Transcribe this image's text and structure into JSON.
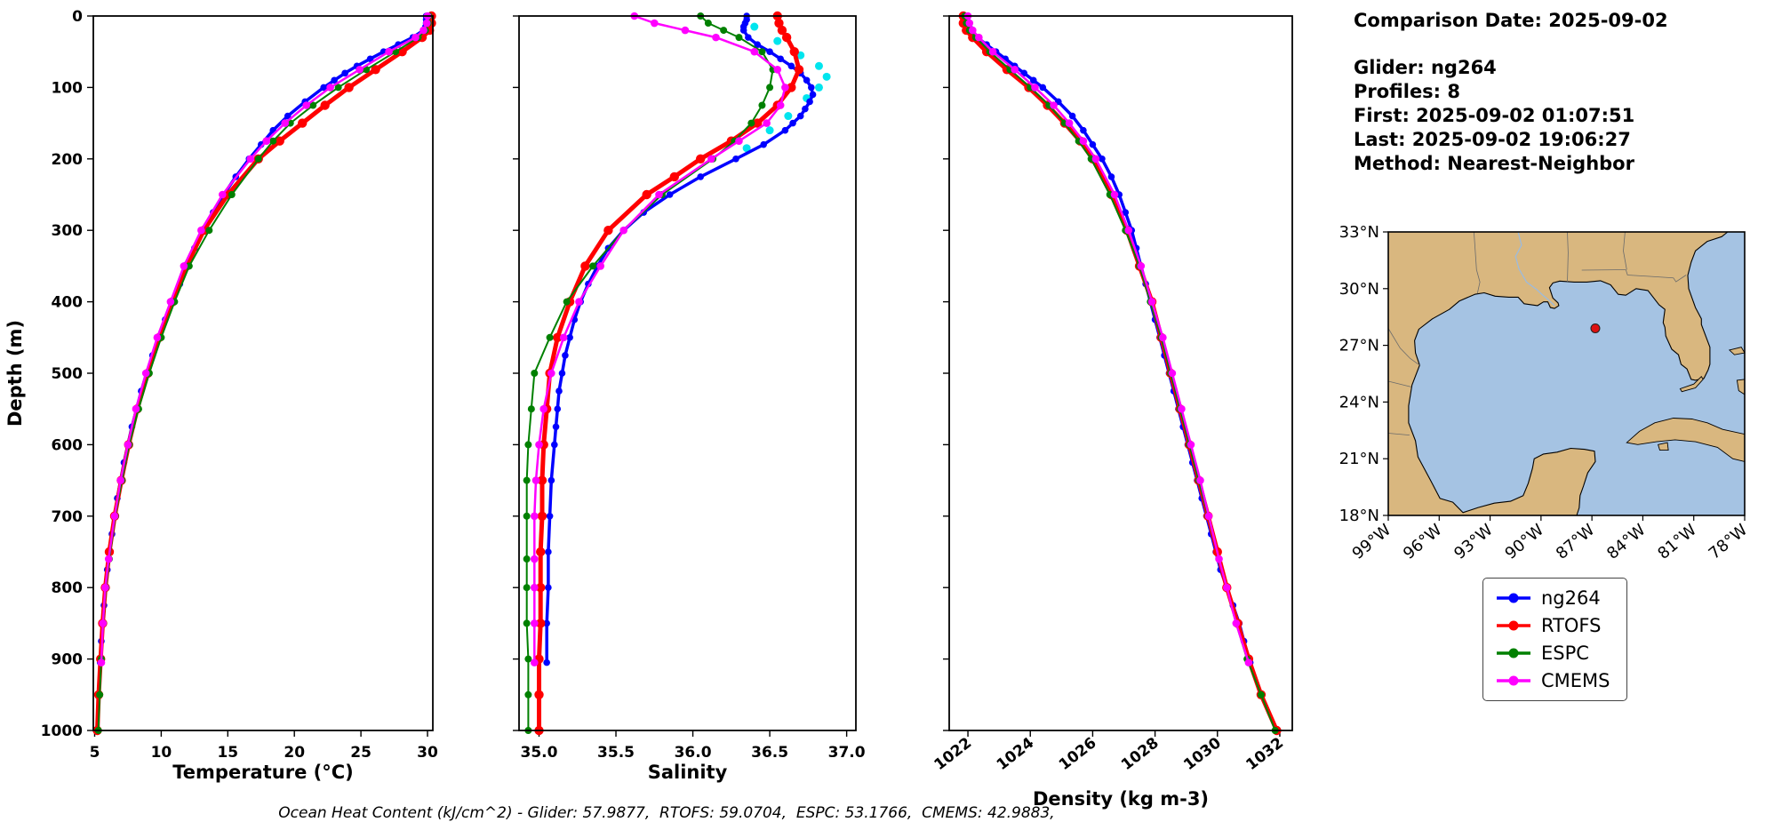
{
  "info": {
    "date": "Comparison Date: 2025-09-02",
    "lines": [
      "Glider: ng264",
      "Profiles: 8",
      "First: 2025-09-02 01:07:51",
      "Last: 2025-09-02 19:06:27",
      "Method: Nearest-Neighbor"
    ]
  },
  "caption": "Ocean Heat Content (kJ/cm^2) - Glider: 57.9877,  RTOFS: 59.0704,  ESPC: 53.1766,  CMEMS: 42.9883,",
  "legend": {
    "entries": [
      {
        "label": "ng264",
        "color": "#0000ff"
      },
      {
        "label": "RTOFS",
        "color": "#ff0000"
      },
      {
        "label": "ESPC",
        "color": "#008000"
      },
      {
        "label": "CMEMS",
        "color": "#ff00ff"
      }
    ]
  },
  "map": {
    "extent": {
      "lon_min": -99,
      "lon_max": -78,
      "lat_min": 18,
      "lat_max": 33
    },
    "lat_values": [
      33,
      30,
      27,
      24,
      21,
      18
    ],
    "lat_ticks": [
      "33°N",
      "30°N",
      "27°N",
      "24°N",
      "21°N",
      "18°N"
    ],
    "lon_values": [
      -99,
      -96,
      -93,
      -90,
      -87,
      -84,
      -81,
      -78
    ],
    "lon_ticks": [
      "99°W",
      "96°W",
      "93°W",
      "90°W",
      "87°W",
      "84°W",
      "81°W",
      "78°W"
    ],
    "land_color": "#d9b77f",
    "water_color": "#a5c3e3",
    "marker": {
      "lon": -86.8,
      "lat": 27.9,
      "color": "#dd1111"
    }
  },
  "chart_data": [
    {
      "id": "temperature",
      "type": "line",
      "xlabel": "Temperature (°C)",
      "ylabel": "Depth (m)",
      "xlim": [
        4.9,
        30.4
      ],
      "ylim": [
        0,
        1000
      ],
      "xticks": [
        5,
        10,
        15,
        20,
        25,
        30
      ],
      "xtick_labels": [
        "5",
        "10",
        "15",
        "20",
        "25",
        "30"
      ],
      "yticks": [
        0,
        100,
        200,
        300,
        400,
        500,
        600,
        700,
        800,
        900,
        1000
      ],
      "ytick_labels": [
        "0",
        "100",
        "200",
        "300",
        "400",
        "500",
        "600",
        "700",
        "800",
        "900",
        "1000"
      ],
      "series": [
        {
          "name": "ng264",
          "color": "#0000ff",
          "depths": [
            0,
            5,
            10,
            15,
            20,
            30,
            40,
            50,
            60,
            70,
            80,
            90,
            100,
            120,
            140,
            160,
            180,
            200,
            225,
            250,
            275,
            300,
            325,
            350,
            375,
            400,
            425,
            450,
            475,
            500,
            525,
            550,
            575,
            600,
            625,
            650,
            675,
            700,
            725,
            750,
            775,
            800,
            825,
            850,
            875,
            905
          ],
          "values": [
            29.9,
            29.9,
            29.9,
            29.85,
            29.7,
            28.9,
            27.8,
            26.7,
            25.7,
            24.7,
            23.8,
            23.0,
            22.2,
            20.8,
            19.5,
            18.4,
            17.5,
            16.6,
            15.6,
            14.7,
            13.9,
            13.2,
            12.5,
            11.9,
            11.4,
            10.9,
            10.3,
            9.8,
            9.35,
            8.9,
            8.5,
            8.15,
            7.8,
            7.5,
            7.2,
            6.95,
            6.7,
            6.5,
            6.3,
            6.1,
            5.95,
            5.8,
            5.7,
            5.6,
            5.5,
            5.42
          ]
        },
        {
          "name": "RTOFS",
          "color": "#ff0000",
          "depths": [
            0,
            10,
            20,
            30,
            50,
            75,
            100,
            125,
            150,
            175,
            200,
            250,
            300,
            350,
            400,
            450,
            500,
            550,
            600,
            650,
            700,
            750,
            800,
            850,
            900,
            950,
            1000
          ],
          "values": [
            30.3,
            30.3,
            30.15,
            29.6,
            28.1,
            26.1,
            24.1,
            22.3,
            20.6,
            18.9,
            17.3,
            15.0,
            13.2,
            11.9,
            10.85,
            9.85,
            9.0,
            8.2,
            7.55,
            7.0,
            6.5,
            6.1,
            5.8,
            5.6,
            5.45,
            5.3,
            5.2
          ]
        },
        {
          "name": "ESPC",
          "color": "#008000",
          "depths": [
            0,
            10,
            20,
            30,
            50,
            75,
            100,
            125,
            150,
            175,
            200,
            250,
            300,
            350,
            400,
            450,
            500,
            550,
            600,
            650,
            700,
            760,
            800,
            850,
            900,
            950,
            1000
          ],
          "values": [
            30.1,
            30.05,
            29.85,
            29.3,
            27.6,
            25.4,
            23.3,
            21.4,
            19.7,
            18.4,
            17.3,
            15.3,
            13.6,
            12.1,
            11.0,
            10.0,
            9.1,
            8.3,
            7.6,
            7.05,
            6.55,
            6.1,
            5.85,
            5.65,
            5.5,
            5.38,
            5.28
          ]
        },
        {
          "name": "CMEMS",
          "color": "#ff00ff",
          "depths": [
            0,
            10,
            20,
            30,
            50,
            75,
            100,
            125,
            150,
            175,
            200,
            250,
            300,
            350,
            400,
            450,
            500,
            550,
            600,
            650,
            700,
            760,
            800,
            850,
            905
          ],
          "values": [
            30.0,
            29.95,
            29.7,
            29.1,
            27.1,
            24.9,
            22.7,
            20.9,
            19.3,
            17.9,
            16.7,
            14.6,
            13.0,
            11.7,
            10.7,
            9.7,
            8.85,
            8.1,
            7.5,
            6.95,
            6.5,
            6.05,
            5.8,
            5.62,
            5.5
          ]
        }
      ]
    },
    {
      "id": "salinity",
      "type": "line",
      "xlabel": "Salinity",
      "ylabel": "Depth (m)",
      "xlim": [
        34.87,
        37.06
      ],
      "ylim": [
        0,
        1000
      ],
      "xticks": [
        35.0,
        35.5,
        36.0,
        36.5,
        37.0
      ],
      "xtick_labels": [
        "35.0",
        "35.5",
        "36.0",
        "36.5",
        "37.0"
      ],
      "yticks": [
        0,
        100,
        200,
        300,
        400,
        500,
        600,
        700,
        800,
        900,
        1000
      ],
      "extra_scatter": {
        "name": "unlabeled cyan scatter",
        "color": "#00e5ee",
        "depths": [
          15,
          35,
          55,
          70,
          85,
          100,
          115,
          140,
          160,
          185
        ],
        "values": [
          36.4,
          36.55,
          36.7,
          36.82,
          36.87,
          36.82,
          36.74,
          36.62,
          36.5,
          36.35
        ]
      },
      "series": [
        {
          "name": "ng264",
          "color": "#0000ff",
          "depths": [
            0,
            5,
            10,
            15,
            20,
            30,
            40,
            50,
            60,
            70,
            80,
            90,
            100,
            110,
            120,
            130,
            140,
            150,
            160,
            180,
            200,
            225,
            250,
            275,
            300,
            325,
            350,
            375,
            400,
            425,
            450,
            475,
            500,
            525,
            550,
            575,
            600,
            650,
            700,
            750,
            800,
            850,
            905
          ],
          "values": [
            36.35,
            36.35,
            36.34,
            36.33,
            36.33,
            36.36,
            36.42,
            36.5,
            36.57,
            36.64,
            36.7,
            36.74,
            36.77,
            36.78,
            36.76,
            36.73,
            36.7,
            36.65,
            36.6,
            36.46,
            36.28,
            36.05,
            35.85,
            35.68,
            35.55,
            35.45,
            35.38,
            35.32,
            35.27,
            35.23,
            35.2,
            35.17,
            35.15,
            35.13,
            35.12,
            35.11,
            35.1,
            35.08,
            35.07,
            35.06,
            35.06,
            35.05,
            35.05
          ]
        },
        {
          "name": "RTOFS",
          "color": "#ff0000",
          "depths": [
            0,
            10,
            20,
            30,
            50,
            75,
            100,
            125,
            150,
            175,
            200,
            225,
            250,
            300,
            350,
            400,
            450,
            500,
            550,
            600,
            650,
            700,
            750,
            800,
            850,
            900,
            950,
            1000
          ],
          "values": [
            36.55,
            36.56,
            36.58,
            36.61,
            36.66,
            36.69,
            36.64,
            36.55,
            36.42,
            36.25,
            36.05,
            35.88,
            35.7,
            35.45,
            35.3,
            35.2,
            35.12,
            35.07,
            35.05,
            35.03,
            35.02,
            35.02,
            35.01,
            35.01,
            35.01,
            35.0,
            35.0,
            35.0
          ]
        },
        {
          "name": "ESPC",
          "color": "#008000",
          "depths": [
            0,
            10,
            20,
            30,
            50,
            75,
            100,
            125,
            150,
            175,
            200,
            250,
            300,
            350,
            400,
            450,
            500,
            550,
            600,
            650,
            700,
            760,
            800,
            850,
            900,
            950,
            1000
          ],
          "values": [
            36.05,
            36.1,
            36.2,
            36.3,
            36.45,
            36.52,
            36.5,
            36.45,
            36.38,
            36.27,
            36.13,
            35.8,
            35.55,
            35.35,
            35.18,
            35.07,
            34.97,
            34.95,
            34.93,
            34.92,
            34.92,
            34.92,
            34.92,
            34.92,
            34.93,
            34.93,
            34.93
          ]
        },
        {
          "name": "CMEMS",
          "color": "#ff00ff",
          "depths": [
            0,
            10,
            20,
            30,
            50,
            75,
            100,
            125,
            150,
            175,
            200,
            250,
            300,
            350,
            400,
            450,
            500,
            550,
            600,
            650,
            700,
            760,
            800,
            850,
            905
          ],
          "values": [
            35.62,
            35.75,
            35.95,
            36.15,
            36.4,
            36.55,
            36.6,
            36.57,
            36.48,
            36.3,
            36.12,
            35.78,
            35.55,
            35.4,
            35.26,
            35.16,
            35.08,
            35.03,
            35.0,
            34.98,
            34.97,
            34.97,
            34.97,
            34.97,
            34.97
          ]
        }
      ]
    },
    {
      "id": "density",
      "type": "line",
      "xlabel": "Density (kg m-3)",
      "ylabel": "Depth (m)",
      "xlim": [
        1021.4,
        1032.4
      ],
      "ylim": [
        0,
        1000
      ],
      "xticks": [
        1022,
        1024,
        1026,
        1028,
        1030,
        1032
      ],
      "xtick_labels": [
        "1022",
        "1024",
        "1026",
        "1028",
        "1030",
        "1032"
      ],
      "yticks": [
        0,
        100,
        200,
        300,
        400,
        500,
        600,
        700,
        800,
        900,
        1000
      ],
      "series": [
        {
          "name": "ng264",
          "color": "#0000ff",
          "depths": [
            0,
            10,
            20,
            30,
            40,
            50,
            60,
            70,
            80,
            90,
            100,
            120,
            140,
            160,
            180,
            200,
            225,
            250,
            275,
            300,
            325,
            350,
            375,
            400,
            425,
            450,
            475,
            500,
            525,
            550,
            575,
            600,
            625,
            650,
            675,
            700,
            725,
            750,
            775,
            800,
            825,
            850,
            875,
            905
          ],
          "values": [
            1022.0,
            1022.05,
            1022.15,
            1022.3,
            1022.6,
            1022.9,
            1023.2,
            1023.5,
            1023.8,
            1024.1,
            1024.4,
            1024.9,
            1025.35,
            1025.7,
            1026.0,
            1026.3,
            1026.6,
            1026.85,
            1027.05,
            1027.25,
            1027.4,
            1027.55,
            1027.7,
            1027.85,
            1028.0,
            1028.15,
            1028.3,
            1028.45,
            1028.6,
            1028.75,
            1028.9,
            1029.05,
            1029.2,
            1029.35,
            1029.5,
            1029.65,
            1029.8,
            1029.95,
            1030.1,
            1030.3,
            1030.5,
            1030.7,
            1030.85,
            1031.05
          ]
        },
        {
          "name": "RTOFS",
          "color": "#ff0000",
          "depths": [
            0,
            10,
            20,
            30,
            50,
            75,
            100,
            125,
            150,
            175,
            200,
            250,
            300,
            350,
            400,
            450,
            500,
            550,
            600,
            650,
            700,
            750,
            800,
            850,
            900,
            950,
            1000
          ],
          "values": [
            1021.85,
            1021.85,
            1021.95,
            1022.15,
            1022.6,
            1023.25,
            1023.95,
            1024.55,
            1025.1,
            1025.6,
            1026.0,
            1026.6,
            1027.1,
            1027.5,
            1027.9,
            1028.2,
            1028.5,
            1028.8,
            1029.1,
            1029.4,
            1029.7,
            1030.0,
            1030.3,
            1030.65,
            1031.0,
            1031.4,
            1031.9
          ]
        },
        {
          "name": "ESPC",
          "color": "#008000",
          "depths": [
            0,
            10,
            20,
            30,
            50,
            75,
            100,
            125,
            150,
            175,
            200,
            250,
            300,
            350,
            400,
            450,
            500,
            550,
            600,
            650,
            700,
            760,
            800,
            850,
            900,
            950,
            1000
          ],
          "values": [
            1021.9,
            1021.95,
            1022.05,
            1022.25,
            1022.7,
            1023.35,
            1024.0,
            1024.6,
            1025.1,
            1025.55,
            1025.95,
            1026.55,
            1027.05,
            1027.5,
            1027.85,
            1028.2,
            1028.5,
            1028.8,
            1029.1,
            1029.4,
            1029.7,
            1030.05,
            1030.3,
            1030.6,
            1030.95,
            1031.4,
            1031.85
          ]
        },
        {
          "name": "CMEMS",
          "color": "#ff00ff",
          "depths": [
            0,
            10,
            20,
            30,
            50,
            75,
            100,
            125,
            150,
            175,
            200,
            250,
            300,
            350,
            400,
            450,
            500,
            550,
            600,
            650,
            700,
            760,
            800,
            850,
            905
          ],
          "values": [
            1022.0,
            1022.05,
            1022.15,
            1022.35,
            1022.8,
            1023.5,
            1024.15,
            1024.75,
            1025.25,
            1025.7,
            1026.1,
            1026.7,
            1027.15,
            1027.55,
            1027.9,
            1028.25,
            1028.55,
            1028.85,
            1029.15,
            1029.45,
            1029.72,
            1030.05,
            1030.3,
            1030.6,
            1031.0
          ]
        }
      ]
    }
  ]
}
